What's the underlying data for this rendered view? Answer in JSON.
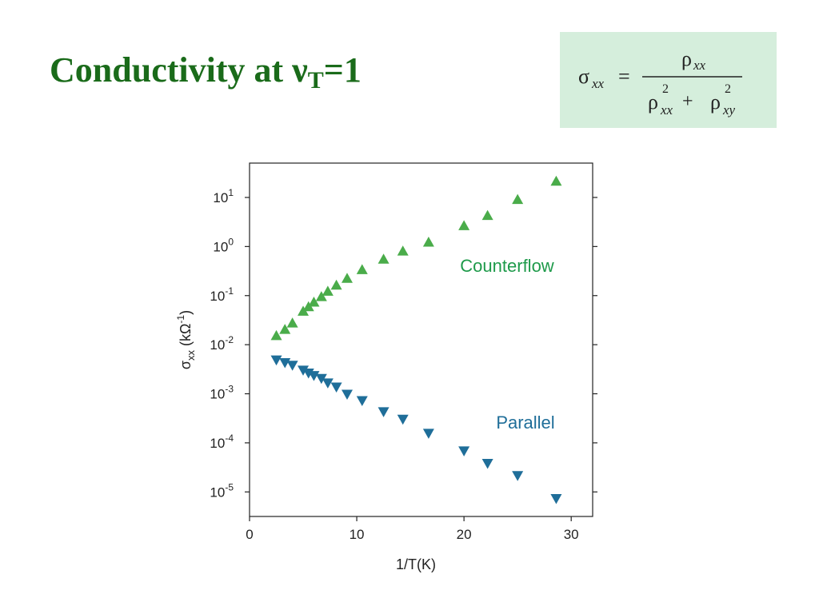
{
  "title": {
    "prefix": "Conductivity at ν",
    "subscript": "T",
    "suffix": "=1"
  },
  "formula": {
    "lhs_symbol": "σ",
    "lhs_subscript": "xx",
    "equals": "=",
    "numerator_symbol": "ρ",
    "numerator_subscript": "xx",
    "denominator": [
      {
        "symbol": "ρ",
        "sup": "2",
        "sub": "xx"
      },
      {
        "operator": "+"
      },
      {
        "symbol": "ρ",
        "sup": "2",
        "sub": "xy"
      }
    ]
  },
  "colors": {
    "title": "#1a6b1a",
    "formula_background": "#d5eedc",
    "counterflow": "#4aac4a",
    "counterflow_label": "#1e9a4a",
    "parallel": "#1f6e99",
    "parallel_label": "#1f6e99"
  },
  "chart_data": {
    "type": "scatter",
    "xlabel": "1/T(K)",
    "ylabel": "σ",
    "ylabel_subscript": "xx",
    "ylabel_units": "(kΩ",
    "ylabel_units_sup": "-1",
    "ylabel_units_close": ")",
    "xlim": [
      0,
      32
    ],
    "ylim_log10": [
      -5.5,
      1.7
    ],
    "y_scale": "log",
    "x_ticks": [
      0,
      10,
      20,
      30
    ],
    "y_ticks": [
      {
        "base": "10",
        "exp": "1",
        "value": 1
      },
      {
        "base": "10",
        "exp": "0",
        "value": 0
      },
      {
        "base": "10",
        "exp": "-1",
        "value": -1
      },
      {
        "base": "10",
        "exp": "-2",
        "value": -2
      },
      {
        "base": "10",
        "exp": "-3",
        "value": -3
      },
      {
        "base": "10",
        "exp": "-4",
        "value": -4
      },
      {
        "base": "10",
        "exp": "-5",
        "value": -5
      }
    ],
    "grid": false,
    "series": [
      {
        "name": "Counterflow",
        "marker": "triangle-up",
        "x": [
          2.5,
          3.3,
          4.0,
          5.0,
          5.5,
          6.0,
          6.7,
          7.3,
          8.1,
          9.1,
          10.5,
          12.5,
          14.3,
          16.7,
          20.0,
          22.2,
          25.0,
          28.6
        ],
        "y": [
          0.015,
          0.02,
          0.027,
          0.047,
          0.058,
          0.072,
          0.093,
          0.12,
          0.16,
          0.22,
          0.33,
          0.54,
          0.79,
          1.2,
          2.6,
          4.2,
          8.9,
          21
        ]
      },
      {
        "name": "Parallel",
        "marker": "triangle-down",
        "x": [
          2.5,
          3.3,
          4.0,
          5.0,
          5.5,
          6.0,
          6.7,
          7.3,
          8.1,
          9.1,
          10.5,
          12.5,
          14.3,
          16.7,
          20.0,
          22.2,
          25.0,
          28.6
        ],
        "y": [
          0.005,
          0.0044,
          0.0039,
          0.0031,
          0.0027,
          0.0024,
          0.0021,
          0.0017,
          0.0014,
          0.001,
          0.00074,
          0.00044,
          0.00031,
          0.00016,
          7e-05,
          3.9e-05,
          2.2e-05,
          7.5e-06
        ]
      }
    ]
  }
}
